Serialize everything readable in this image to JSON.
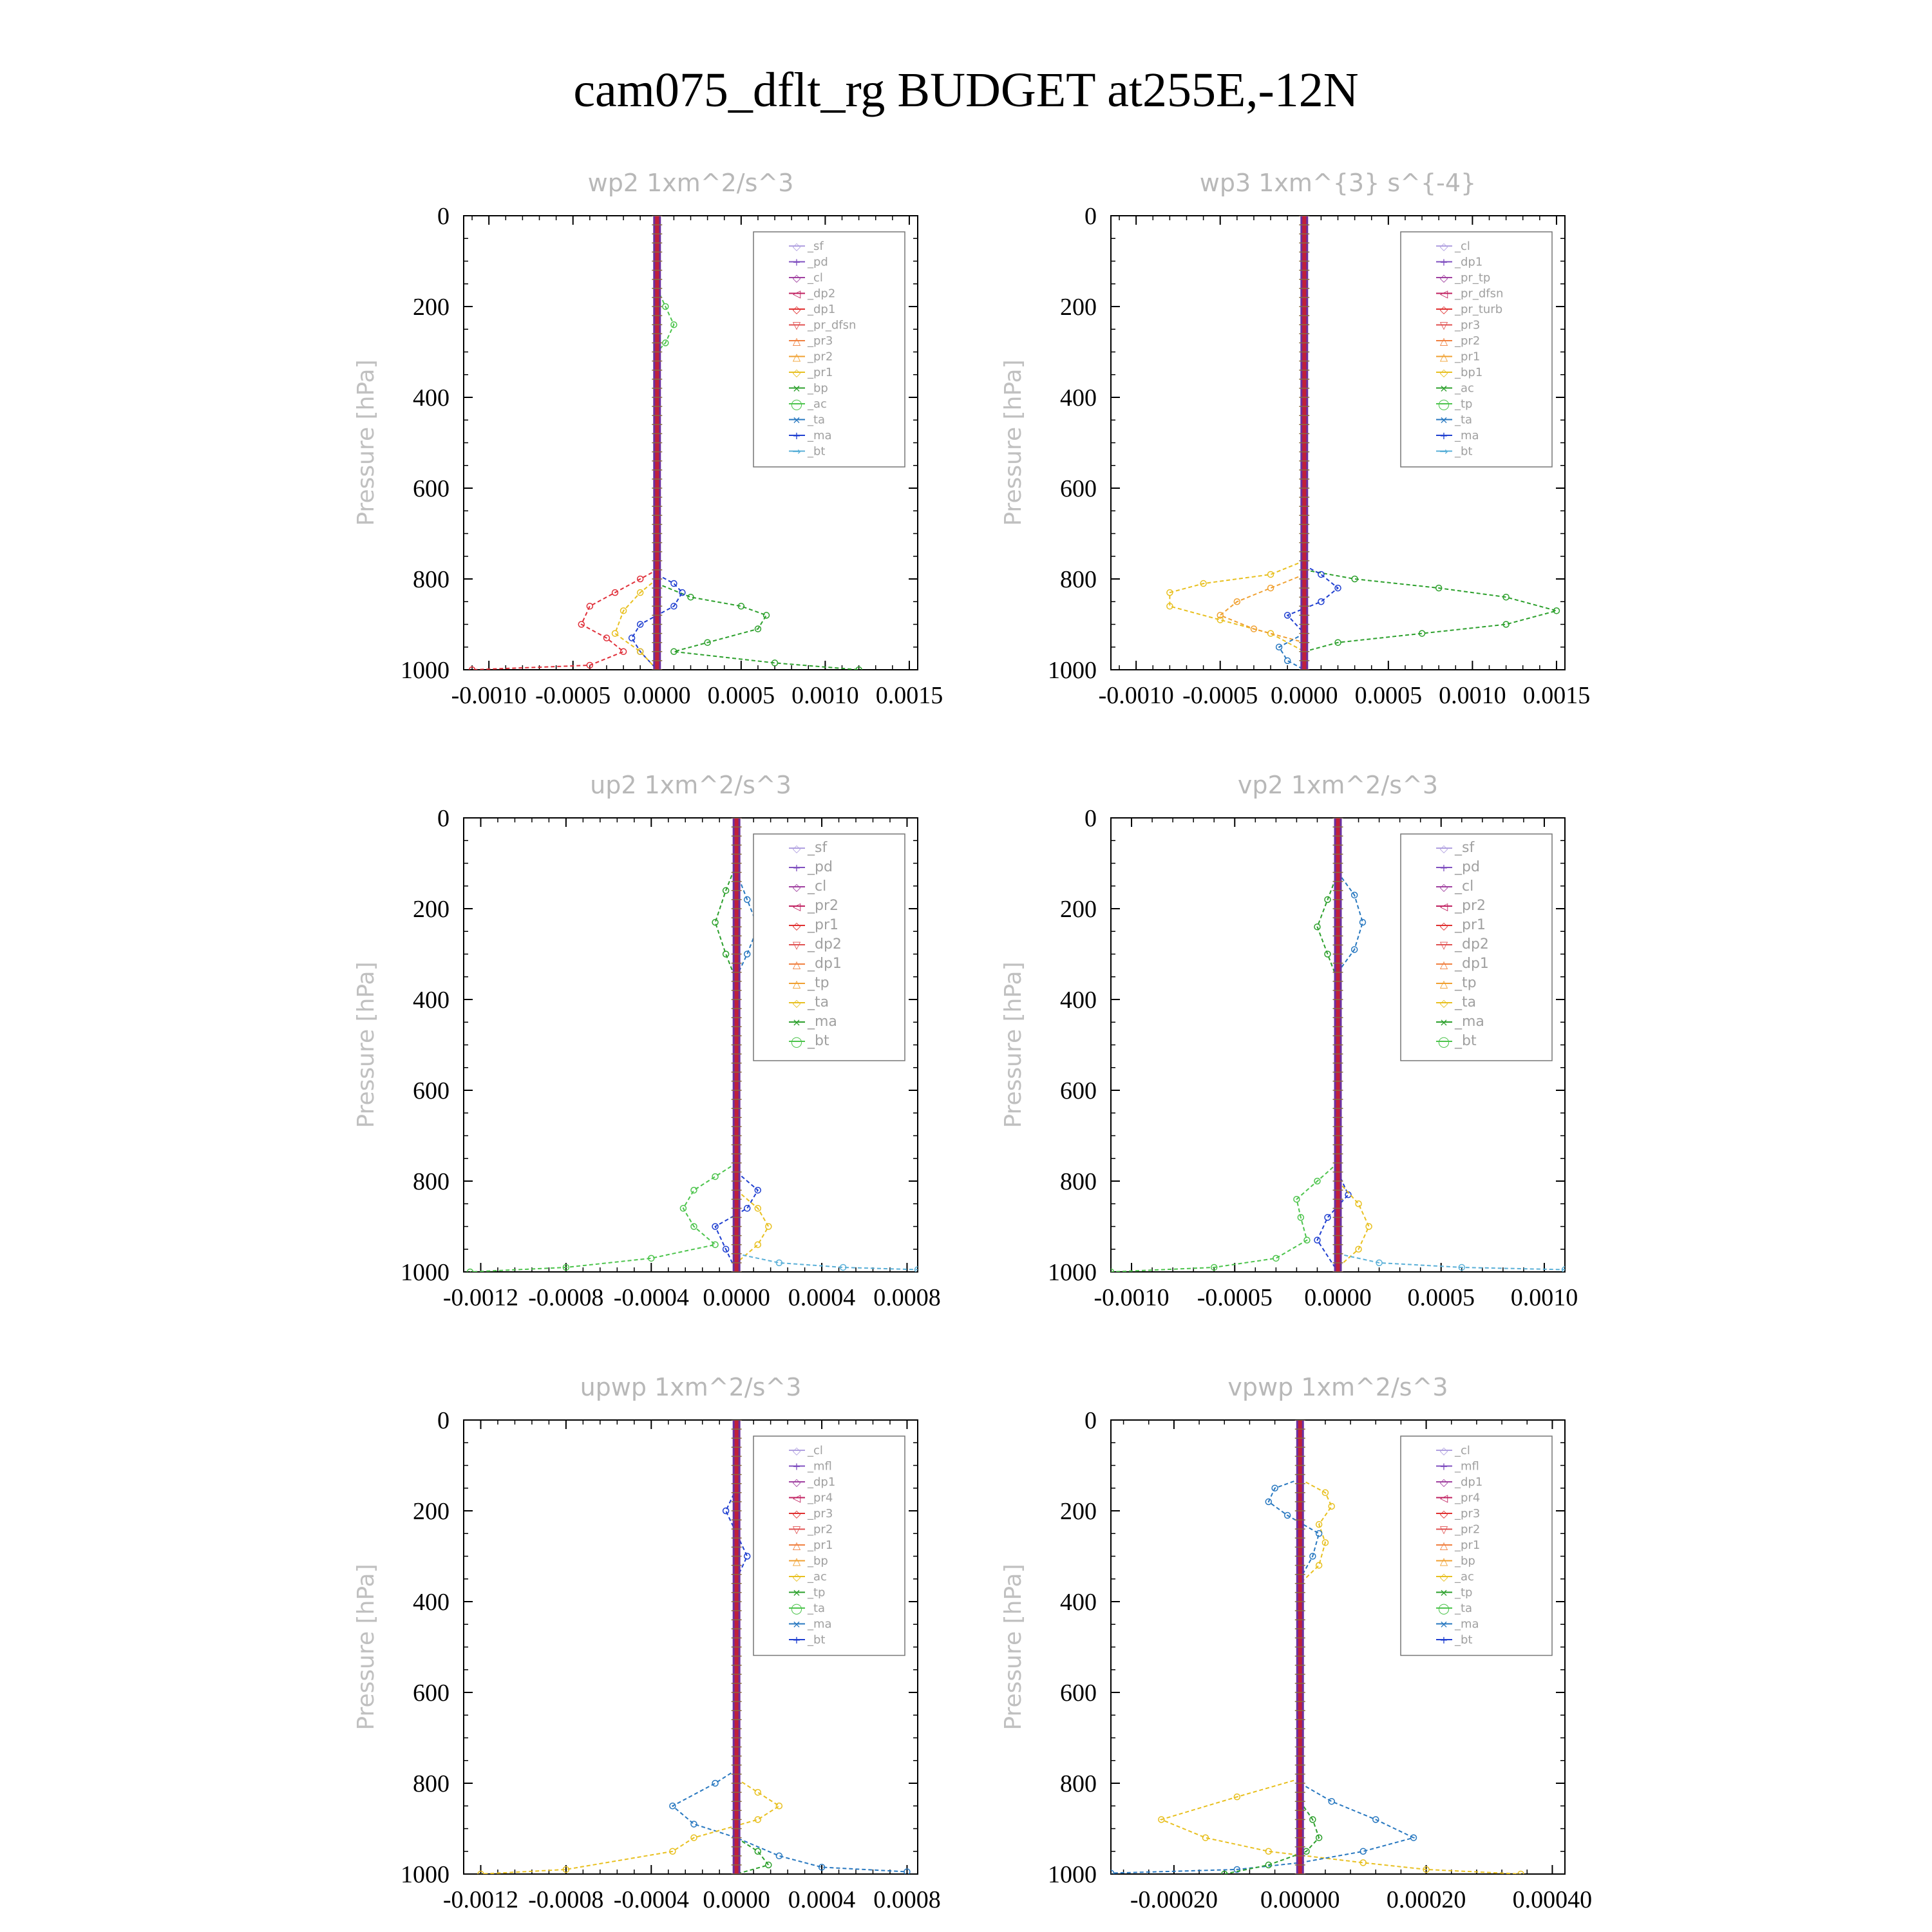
{
  "figure_title": "cam075_dflt_rg  BUDGET at255E,-12N",
  "chart_data": [
    {
      "type": "line",
      "title": "wp2   1xm^2/s^3",
      "ylabel": "Pressure  [hPa]",
      "ylim": [
        1000,
        0
      ],
      "y_ticks": [
        "0",
        "200",
        "400",
        "600",
        "800",
        "1000"
      ],
      "xlim": [
        -0.00115,
        0.00155
      ],
      "x_ticks": [
        -0.001,
        -0.0005,
        0.0,
        0.0005,
        0.001,
        0.0015
      ],
      "x_tick_labels": [
        "-0.0010",
        "-0.0005",
        "0.0000",
        "0.0005",
        "0.0010",
        "0.0015"
      ],
      "grid": false,
      "legend_position": "top-right",
      "legend": [
        "_sf",
        "_pd",
        "_cl",
        "_dp2",
        "_dp1",
        "_pr_dfsn",
        "_pr3",
        "_pr2",
        "_pr1",
        "_bp",
        "_ac",
        "_ta",
        "_ma",
        "_bt"
      ],
      "series": [
        {
          "name": "_dp1",
          "color": "#e0303a",
          "x": [
            0,
            0,
            -0.0001,
            -0.00025,
            -0.0004,
            -0.00045,
            -0.0003,
            -0.0002,
            -0.0004,
            -0.0011
          ],
          "y": [
            750,
            780,
            800,
            830,
            860,
            900,
            930,
            960,
            990,
            1000
          ]
        },
        {
          "name": "_pr1",
          "color": "#2ca02c",
          "x": [
            0,
            0,
            0.0002,
            0.0005,
            0.00065,
            0.0006,
            0.0003,
            0.0001,
            0.0007,
            0.0012
          ],
          "y": [
            780,
            810,
            840,
            860,
            880,
            910,
            940,
            960,
            985,
            1000
          ]
        },
        {
          "name": "_ta",
          "color": "#1f3fd0",
          "x": [
            0,
            0.0001,
            0.00015,
            0.0001,
            -0.0001,
            -0.00015,
            -0.0001,
            0
          ],
          "y": [
            790,
            810,
            830,
            860,
            900,
            930,
            960,
            1000
          ]
        },
        {
          "name": "_pr2",
          "color": "#e8c020",
          "x": [
            0,
            -0.0001,
            -0.0002,
            -0.00025,
            -0.0001,
            0
          ],
          "y": [
            800,
            830,
            870,
            920,
            960,
            1000
          ]
        },
        {
          "name": "_bp",
          "color": "#4cc44c",
          "x": [
            0,
            5e-05,
            0.0001,
            5e-05,
            0
          ],
          "y": [
            160,
            200,
            240,
            280,
            300
          ]
        }
      ]
    },
    {
      "type": "line",
      "title": "wp3   1xm^{3} s^{-4}",
      "ylabel": "Pressure  [hPa]",
      "ylim": [
        1000,
        0
      ],
      "y_ticks": [
        "0",
        "200",
        "400",
        "600",
        "800",
        "1000"
      ],
      "xlim": [
        -0.00115,
        0.00155
      ],
      "x_ticks": [
        -0.001,
        -0.0005,
        0.0,
        0.0005,
        0.001,
        0.0015
      ],
      "x_tick_labels": [
        "-0.0010",
        "-0.0005",
        "0.0000",
        "0.0005",
        "0.0010",
        "0.0015"
      ],
      "grid": false,
      "legend_position": "top-right",
      "legend": [
        "_cl",
        "_dp1",
        "_pr_tp",
        "_pr_dfsn",
        "_pr_turb",
        "_pr3",
        "_pr2",
        "_pr1",
        "_bp1",
        "_ac",
        "_tp",
        "_ta",
        "_ma",
        "_bt"
      ],
      "series": [
        {
          "name": "_pr1",
          "color": "#e8c020",
          "x": [
            0,
            -0.0002,
            -0.0006,
            -0.0008,
            -0.0008,
            -0.0005,
            -0.0002,
            0
          ],
          "y": [
            760,
            790,
            810,
            830,
            860,
            890,
            920,
            960
          ]
        },
        {
          "name": "_pr2",
          "color": "#f0a030",
          "x": [
            0,
            -0.0002,
            -0.0004,
            -0.0005,
            -0.0003,
            0
          ],
          "y": [
            790,
            820,
            850,
            880,
            910,
            940
          ]
        },
        {
          "name": "_bp1",
          "color": "#2ca02c",
          "x": [
            0,
            0.0003,
            0.0008,
            0.0012,
            0.0015,
            0.0012,
            0.0007,
            0.0002,
            0
          ],
          "y": [
            780,
            800,
            820,
            840,
            870,
            900,
            920,
            940,
            960
          ]
        },
        {
          "name": "_ta",
          "color": "#1f3fd0",
          "x": [
            0,
            0.0001,
            0.0002,
            0.0001,
            -0.0001,
            0
          ],
          "y": [
            770,
            790,
            820,
            850,
            880,
            920
          ]
        },
        {
          "name": "_tp",
          "color": "#2878c0",
          "x": [
            0,
            -0.00015,
            -0.0001,
            0
          ],
          "y": [
            920,
            950,
            980,
            1000
          ]
        }
      ]
    },
    {
      "type": "line",
      "title": "up2   1xm^2/s^3",
      "ylabel": "Pressure  [hPa]",
      "ylim": [
        1000,
        0
      ],
      "y_ticks": [
        "0",
        "200",
        "400",
        "600",
        "800",
        "1000"
      ],
      "xlim": [
        -0.00128,
        0.00085
      ],
      "x_ticks": [
        -0.0012,
        -0.0008,
        -0.0004,
        0.0,
        0.0004,
        0.0008
      ],
      "x_tick_labels": [
        "-0.0012",
        "-0.0008",
        "-0.0004",
        "0.0000",
        "0.0004",
        "0.0008"
      ],
      "grid": false,
      "legend_position": "top-right",
      "legend": [
        "_sf",
        "_pd",
        "_cl",
        "_pr2",
        "_pr1",
        "_dp2",
        "_dp1",
        "_tp",
        "_ta",
        "_ma",
        "_bt"
      ],
      "series": [
        {
          "name": "_dp1",
          "color": "#4cc44c",
          "x": [
            0,
            -0.0001,
            -0.0002,
            -0.00025,
            -0.0002,
            -0.0001,
            -0.0004,
            -0.0008,
            -0.00125
          ],
          "y": [
            760,
            790,
            820,
            860,
            900,
            940,
            970,
            990,
            1000
          ]
        },
        {
          "name": "_dp2",
          "color": "#2ca02c",
          "x": [
            0,
            -5e-05,
            -0.0001,
            -5e-05,
            0
          ],
          "y": [
            100,
            160,
            230,
            300,
            360
          ]
        },
        {
          "name": "_tp",
          "color": "#2878c0",
          "x": [
            0,
            5e-05,
            0.0001,
            5e-05,
            0
          ],
          "y": [
            120,
            180,
            240,
            300,
            350
          ]
        },
        {
          "name": "_ta",
          "color": "#1f3fd0",
          "x": [
            0,
            0.0001,
            5e-05,
            -0.0001,
            -5e-05,
            0
          ],
          "y": [
            780,
            820,
            860,
            900,
            950,
            1000
          ]
        },
        {
          "name": "_pr1",
          "color": "#e8c020",
          "x": [
            0,
            0.0001,
            0.00015,
            0.0001,
            0
          ],
          "y": [
            820,
            860,
            900,
            940,
            980
          ]
        },
        {
          "name": "_ma",
          "color": "#5ab0d8",
          "x": [
            0,
            0.0002,
            0.0005,
            0.00085
          ],
          "y": [
            960,
            980,
            990,
            995
          ]
        }
      ]
    },
    {
      "type": "line",
      "title": "vp2   1xm^2/s^3",
      "ylabel": "Pressure  [hPa]",
      "ylim": [
        1000,
        0
      ],
      "y_ticks": [
        "0",
        "200",
        "400",
        "600",
        "800",
        "1000"
      ],
      "xlim": [
        -0.0011,
        0.0011
      ],
      "x_ticks": [
        -0.001,
        -0.0005,
        0.0,
        0.0005,
        0.001
      ],
      "x_tick_labels": [
        "-0.0010",
        "-0.0005",
        "0.0000",
        "0.0005",
        "0.0010"
      ],
      "grid": false,
      "legend_position": "top-right",
      "legend": [
        "_sf",
        "_pd",
        "_cl",
        "_pr2",
        "_pr1",
        "_dp2",
        "_dp1",
        "_tp",
        "_ta",
        "_ma",
        "_bt"
      ],
      "series": [
        {
          "name": "_dp1",
          "color": "#4cc44c",
          "x": [
            0,
            -0.0001,
            -0.0002,
            -0.00018,
            -0.00015,
            -0.0003,
            -0.0006,
            -0.0011
          ],
          "y": [
            760,
            800,
            840,
            880,
            930,
            970,
            990,
            1000
          ]
        },
        {
          "name": "_dp2",
          "color": "#2ca02c",
          "x": [
            0,
            -5e-05,
            -0.0001,
            -5e-05,
            0
          ],
          "y": [
            120,
            180,
            240,
            300,
            360
          ]
        },
        {
          "name": "_tp",
          "color": "#2878c0",
          "x": [
            0,
            8e-05,
            0.00012,
            8e-05,
            0
          ],
          "y": [
            120,
            170,
            230,
            290,
            340
          ]
        },
        {
          "name": "_ta",
          "color": "#1f3fd0",
          "x": [
            0,
            5e-05,
            -5e-05,
            -0.0001,
            0
          ],
          "y": [
            780,
            830,
            880,
            930,
            1000
          ]
        },
        {
          "name": "_pr1",
          "color": "#e8c020",
          "x": [
            0,
            0.0001,
            0.00015,
            0.0001,
            0
          ],
          "y": [
            800,
            850,
            900,
            950,
            990
          ]
        },
        {
          "name": "_ma",
          "color": "#5ab0d8",
          "x": [
            0,
            0.0002,
            0.0006,
            0.0011
          ],
          "y": [
            960,
            980,
            990,
            995
          ]
        }
      ]
    },
    {
      "type": "line",
      "title": "upwp   1xm^2/s^3",
      "ylabel": "Pressure  [hPa]",
      "ylim": [
        1000,
        0
      ],
      "y_ticks": [
        "0",
        "200",
        "400",
        "600",
        "800",
        "1000"
      ],
      "xlim": [
        -0.00128,
        0.00085
      ],
      "x_ticks": [
        -0.0012,
        -0.0008,
        -0.0004,
        0.0,
        0.0004,
        0.0008
      ],
      "x_tick_labels": [
        "-0.0012",
        "-0.0008",
        "-0.0004",
        "0.0000",
        "0.0004",
        "0.0008"
      ],
      "grid": false,
      "legend_position": "top-right",
      "legend": [
        "_cl",
        "_mfl",
        "_dp1",
        "_pr4",
        "_pr3",
        "_pr2",
        "_pr1",
        "_bp",
        "_ac",
        "_tp",
        "_ta",
        "_ma",
        "_bt"
      ],
      "series": [
        {
          "name": "_tp",
          "color": "#2878c0",
          "x": [
            0,
            -0.0001,
            -0.0003,
            -0.0002,
            0,
            0.0002,
            0.0004,
            0.0008
          ],
          "y": [
            770,
            800,
            850,
            890,
            920,
            960,
            985,
            995
          ]
        },
        {
          "name": "_pr1",
          "color": "#e8c020",
          "x": [
            0,
            0.0001,
            0.0002,
            0.0001,
            -0.0002,
            -0.0003,
            -0.0008,
            -0.0012
          ],
          "y": [
            790,
            820,
            850,
            880,
            920,
            950,
            990,
            1000
          ]
        },
        {
          "name": "_bp",
          "color": "#2ca02c",
          "x": [
            0,
            0.0001,
            0.00015,
            0
          ],
          "y": [
            920,
            950,
            980,
            1000
          ]
        },
        {
          "name": "_ta",
          "color": "#1f3fd0",
          "x": [
            0,
            -5e-05,
            0,
            5e-05,
            0
          ],
          "y": [
            150,
            200,
            250,
            300,
            350
          ]
        }
      ]
    },
    {
      "type": "line",
      "title": "vpwp   1xm^2/s^3",
      "ylabel": "Pressure  [hPa]",
      "ylim": [
        1000,
        0
      ],
      "y_ticks": [
        "0",
        "200",
        "400",
        "600",
        "800",
        "1000"
      ],
      "xlim": [
        -0.0003,
        0.00042
      ],
      "x_ticks": [
        -0.0002,
        0.0,
        0.0002,
        0.0004
      ],
      "x_tick_labels": [
        "-0.00020",
        "0.00000",
        "0.00020",
        "0.00040"
      ],
      "grid": false,
      "legend_position": "top-right",
      "legend": [
        "_cl",
        "_mfl",
        "_dp1",
        "_pr4",
        "_pr3",
        "_pr2",
        "_pr1",
        "_bp",
        "_ac",
        "_tp",
        "_ta",
        "_ma",
        "_bt"
      ],
      "series": [
        {
          "name": "_pr1",
          "color": "#e8c020",
          "x": [
            0,
            4e-05,
            5e-05,
            3e-05,
            4e-05,
            3e-05,
            0
          ],
          "y": [
            130,
            160,
            190,
            230,
            270,
            320,
            360
          ]
        },
        {
          "name": "_tp",
          "color": "#2878c0",
          "x": [
            0,
            -4e-05,
            -5e-05,
            -2e-05,
            3e-05,
            2e-05,
            0
          ],
          "y": [
            130,
            150,
            180,
            210,
            250,
            300,
            350
          ]
        },
        {
          "name": "_pr1 (low)",
          "color": "#e8c020",
          "x": [
            0,
            -0.0001,
            -0.00022,
            -0.00015,
            -5e-05,
            0.0001,
            0.0002,
            0.00035
          ],
          "y": [
            790,
            830,
            880,
            920,
            950,
            975,
            990,
            1000
          ]
        },
        {
          "name": "_tp (low)",
          "color": "#2878c0",
          "x": [
            0,
            5e-05,
            0.00012,
            0.00018,
            0.0001,
            0,
            -0.0001,
            -0.0003
          ],
          "y": [
            800,
            840,
            880,
            920,
            950,
            975,
            990,
            998
          ]
        },
        {
          "name": "_bp",
          "color": "#2ca02c",
          "x": [
            0,
            2e-05,
            3e-05,
            1e-05,
            -5e-05,
            -0.00012
          ],
          "y": [
            840,
            880,
            920,
            950,
            980,
            1000
          ]
        }
      ]
    }
  ]
}
